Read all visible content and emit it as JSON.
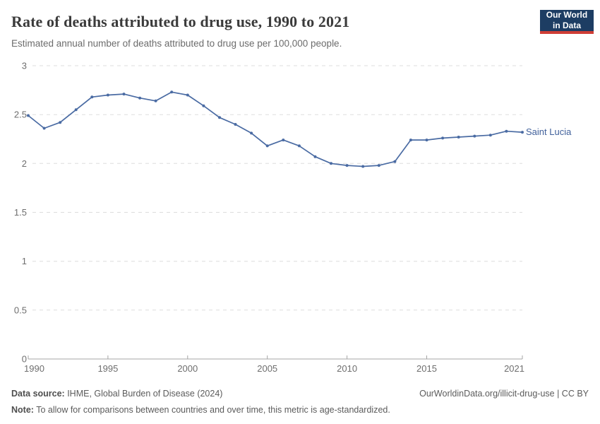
{
  "header": {
    "title": "Rate of deaths attributed to drug use, 1990 to 2021",
    "subtitle": "Estimated annual number of deaths attributed to drug use per 100,000 people.",
    "logo": {
      "line1": "Our World",
      "line2": "in Data"
    }
  },
  "chart_data": {
    "type": "line",
    "title": "Rate of deaths attributed to drug use, 1990 to 2021",
    "subtitle": "Estimated annual number of deaths attributed to drug use per 100,000 people.",
    "xlabel": "",
    "ylabel": "",
    "x": [
      1990,
      1991,
      1992,
      1993,
      1994,
      1995,
      1996,
      1997,
      1998,
      1999,
      2000,
      2001,
      2002,
      2003,
      2004,
      2005,
      2006,
      2007,
      2008,
      2009,
      2010,
      2011,
      2012,
      2013,
      2014,
      2015,
      2016,
      2017,
      2018,
      2019,
      2020,
      2021
    ],
    "series": [
      {
        "name": "Saint Lucia",
        "color": "#4a6ba3",
        "values": [
          2.49,
          2.36,
          2.42,
          2.55,
          2.68,
          2.7,
          2.71,
          2.67,
          2.64,
          2.73,
          2.7,
          2.59,
          2.47,
          2.4,
          2.31,
          2.18,
          2.24,
          2.18,
          2.07,
          2.0,
          1.98,
          1.97,
          1.98,
          2.02,
          2.24,
          2.24,
          2.26,
          2.27,
          2.28,
          2.29,
          2.33,
          2.32
        ]
      }
    ],
    "ylim": [
      0,
      3
    ],
    "xlim": [
      1990,
      2021
    ],
    "yticks": [
      0,
      0.5,
      1,
      1.5,
      2,
      2.5,
      3
    ],
    "ytick_labels": [
      "0",
      "0.5",
      "1",
      "1.5",
      "2",
      "2.5",
      "3"
    ],
    "xticks": [
      1990,
      1995,
      2000,
      2005,
      2010,
      2015,
      2021
    ],
    "grid": true,
    "grid_style": "dashed",
    "legend_position": "right-of-line-end",
    "colors": {
      "line": "#4a6ba3",
      "grid": "#dddddd",
      "axis": "#a5a5a5",
      "tick_text": "#6e6e6e"
    }
  },
  "footer": {
    "source_label": "Data source:",
    "source_text": " IHME, Global Burden of Disease (2024)",
    "link_text": "OurWorldinData.org/illicit-drug-use | CC BY",
    "note_label": "Note:",
    "note_text": " To allow for comparisons between countries and over time, this metric is age-standardized."
  }
}
